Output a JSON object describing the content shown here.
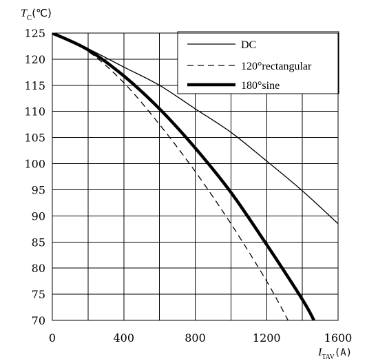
{
  "chart_data": {
    "type": "line",
    "title": "",
    "ylabel": {
      "main": "T",
      "sub": "C",
      "unit": "(℃)"
    },
    "xlabel": {
      "main": "I",
      "sub": "TAV",
      "unit": "(A)"
    },
    "xlim": [
      0,
      1600
    ],
    "ylim": [
      70,
      125
    ],
    "xticks": [
      0,
      400,
      800,
      1200,
      1600
    ],
    "xtick_labels": [
      "0",
      "400",
      "800",
      "1200",
      "1600"
    ],
    "yticks": [
      125,
      120,
      115,
      110,
      105,
      100,
      95,
      90,
      85,
      80,
      75,
      70
    ],
    "ytick_labels": [
      "125",
      "120",
      "115",
      "110",
      "105",
      "100",
      "95",
      "90",
      "85",
      "80",
      "75",
      "70"
    ],
    "grid": true,
    "legend_position": "top-right",
    "series": [
      {
        "name": "DC",
        "style": "thin-solid",
        "x": [
          0,
          200,
          400,
          600,
          800,
          1000,
          1200,
          1400,
          1600
        ],
        "y": [
          125,
          122.0,
          118.5,
          115.0,
          110.5,
          106.0,
          100.5,
          94.8,
          88.5
        ]
      },
      {
        "name": "120°rectangular",
        "style": "dashed",
        "x": [
          0,
          200,
          400,
          600,
          800,
          1000,
          1200,
          1320
        ],
        "y": [
          125,
          121.5,
          115.5,
          107.5,
          98.5,
          88.5,
          77.5,
          70
        ]
      },
      {
        "name": "180°sine",
        "style": "thick-solid",
        "x": [
          0,
          200,
          400,
          600,
          800,
          1000,
          1200,
          1400,
          1465
        ],
        "y": [
          125,
          121.8,
          116.8,
          110.5,
          103.0,
          94.5,
          84.5,
          74.0,
          70
        ]
      }
    ]
  }
}
